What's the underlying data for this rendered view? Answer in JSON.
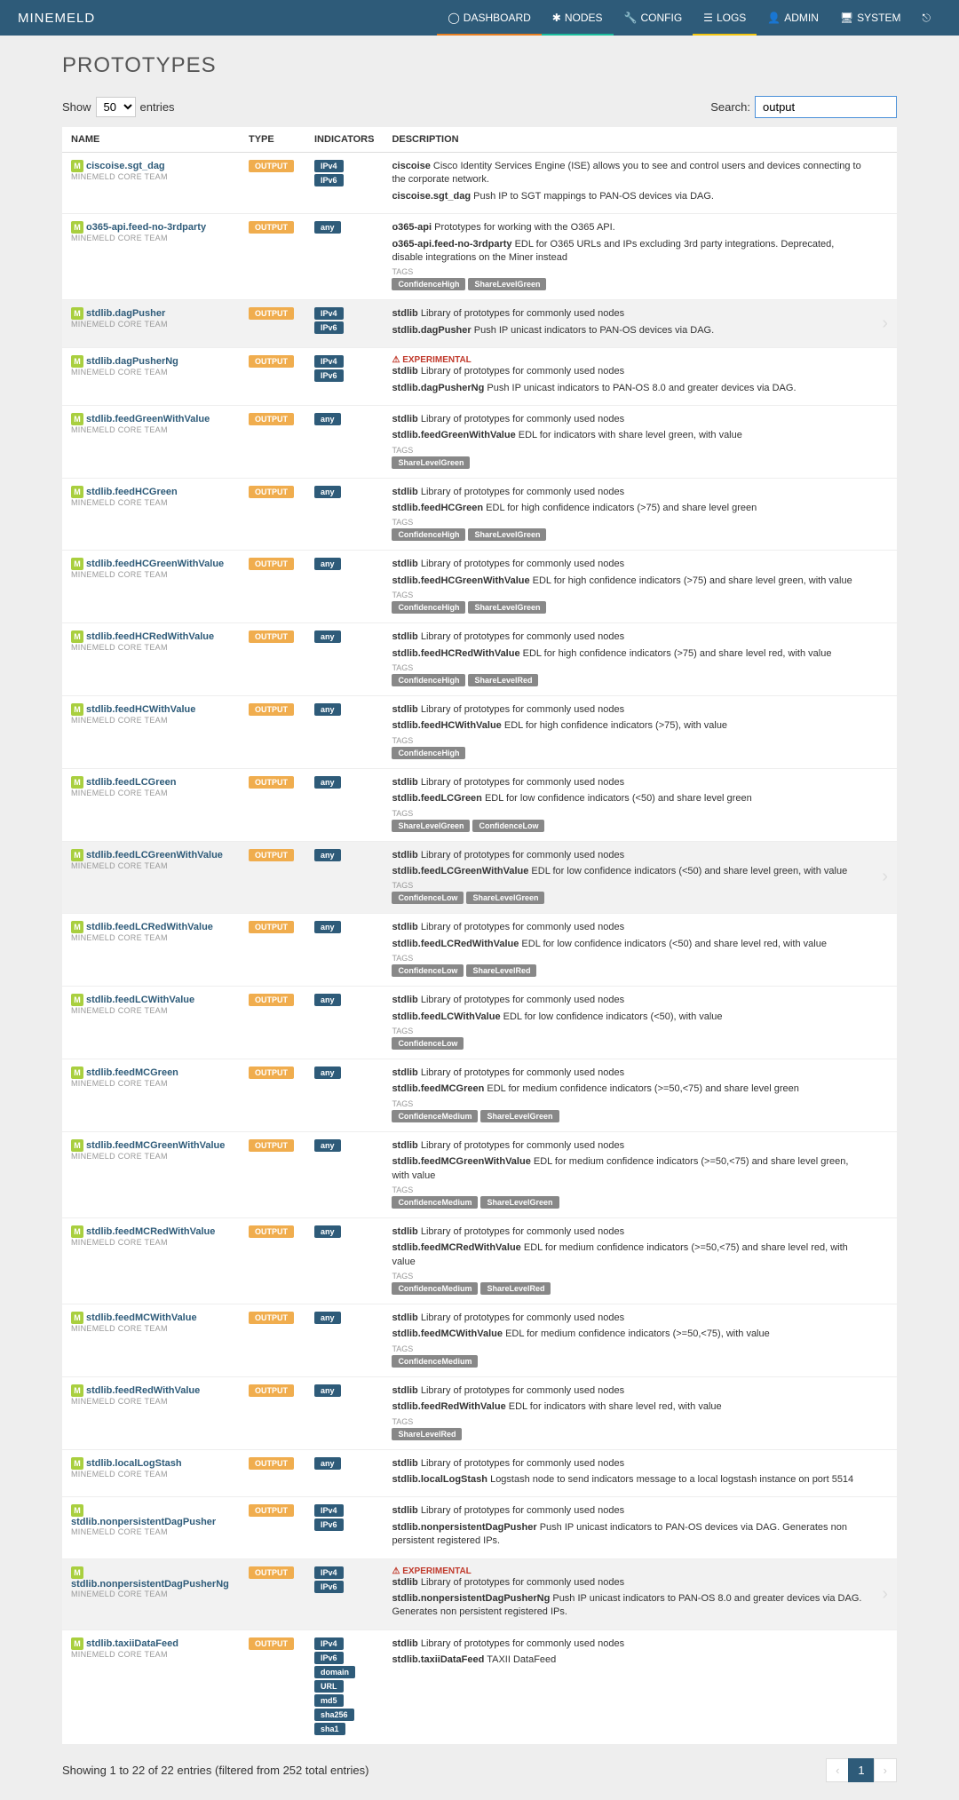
{
  "brand": "MINEMELD",
  "nav": {
    "dashboard": "DASHBOARD",
    "nodes": "NODES",
    "config": "CONFIG",
    "logs": "LOGS",
    "admin": "ADMIN",
    "system": "SYSTEM"
  },
  "page_title": "PROTOTYPES",
  "show_label_pre": "Show",
  "show_label_post": "entries",
  "show_value": "50",
  "search_label": "Search:",
  "search_value": "output",
  "headers": {
    "name": "NAME",
    "type": "TYPE",
    "indicators": "INDICATORS",
    "description": "DESCRIPTION"
  },
  "team_label": "MINEMELD CORE TEAM",
  "type_label": "OUTPUT",
  "tags_label": "TAGS",
  "experimental_label": "EXPERIMENTAL",
  "rows": [
    {
      "name": "ciscoise.sgt_dag",
      "indicators": [
        "IPv4",
        "IPv6"
      ],
      "desc": [
        {
          "b": "ciscoise",
          "t": " Cisco Identity Services Engine (ISE) allows you to see and control users and devices connecting to the corporate network."
        },
        {
          "b": "ciscoise.sgt_dag",
          "t": " Push IP to SGT mappings to PAN-OS devices via DAG."
        }
      ],
      "tags": null
    },
    {
      "name": "o365-api.feed-no-3rdparty",
      "indicators": [
        "any"
      ],
      "desc": [
        {
          "b": "o365-api",
          "t": " Prototypes for working with the O365 API."
        },
        {
          "b": "o365-api.feed-no-3rdparty",
          "t": " EDL for O365 URLs and IPs excluding 3rd party integrations. Deprecated, disable integrations on the Miner instead"
        }
      ],
      "tags": [
        "ConfidenceHigh",
        "ShareLevelGreen"
      ]
    },
    {
      "name": "stdlib.dagPusher",
      "indicators": [
        "IPv4",
        "IPv6"
      ],
      "highlight": true,
      "arrow": true,
      "desc": [
        {
          "b": "stdlib",
          "t": " Library of prototypes for commonly used nodes"
        },
        {
          "b": "stdlib.dagPusher",
          "t": " Push IP unicast indicators to PAN-OS devices via DAG."
        }
      ],
      "tags": null
    },
    {
      "name": "stdlib.dagPusherNg",
      "indicators": [
        "IPv4",
        "IPv6"
      ],
      "experimental": true,
      "desc": [
        {
          "b": "stdlib",
          "t": " Library of prototypes for commonly used nodes"
        },
        {
          "b": "stdlib.dagPusherNg",
          "t": " Push IP unicast indicators to PAN-OS 8.0 and greater devices via DAG."
        }
      ],
      "tags": null
    },
    {
      "name": "stdlib.feedGreenWithValue",
      "indicators": [
        "any"
      ],
      "desc": [
        {
          "b": "stdlib",
          "t": " Library of prototypes for commonly used nodes"
        },
        {
          "b": "stdlib.feedGreenWithValue",
          "t": " EDL for indicators with share level green, with value"
        }
      ],
      "tags": [
        "ShareLevelGreen"
      ]
    },
    {
      "name": "stdlib.feedHCGreen",
      "indicators": [
        "any"
      ],
      "desc": [
        {
          "b": "stdlib",
          "t": " Library of prototypes for commonly used nodes"
        },
        {
          "b": "stdlib.feedHCGreen",
          "t": " EDL for high confidence indicators (>75) and share level green"
        }
      ],
      "tags": [
        "ConfidenceHigh",
        "ShareLevelGreen"
      ]
    },
    {
      "name": "stdlib.feedHCGreenWithValue",
      "indicators": [
        "any"
      ],
      "desc": [
        {
          "b": "stdlib",
          "t": " Library of prototypes for commonly used nodes"
        },
        {
          "b": "stdlib.feedHCGreenWithValue",
          "t": " EDL for high confidence indicators (>75) and share level green, with value"
        }
      ],
      "tags": [
        "ConfidenceHigh",
        "ShareLevelGreen"
      ]
    },
    {
      "name": "stdlib.feedHCRedWithValue",
      "indicators": [
        "any"
      ],
      "desc": [
        {
          "b": "stdlib",
          "t": " Library of prototypes for commonly used nodes"
        },
        {
          "b": "stdlib.feedHCRedWithValue",
          "t": " EDL for high confidence indicators (>75) and share level red, with value"
        }
      ],
      "tags": [
        "ConfidenceHigh",
        "ShareLevelRed"
      ]
    },
    {
      "name": "stdlib.feedHCWithValue",
      "indicators": [
        "any"
      ],
      "desc": [
        {
          "b": "stdlib",
          "t": " Library of prototypes for commonly used nodes"
        },
        {
          "b": "stdlib.feedHCWithValue",
          "t": " EDL for high confidence indicators (>75), with value"
        }
      ],
      "tags": [
        "ConfidenceHigh"
      ]
    },
    {
      "name": "stdlib.feedLCGreen",
      "indicators": [
        "any"
      ],
      "desc": [
        {
          "b": "stdlib",
          "t": " Library of prototypes for commonly used nodes"
        },
        {
          "b": "stdlib.feedLCGreen",
          "t": " EDL for low confidence indicators (<50) and share level green"
        }
      ],
      "tags": [
        "ShareLevelGreen",
        "ConfidenceLow"
      ]
    },
    {
      "name": "stdlib.feedLCGreenWithValue",
      "indicators": [
        "any"
      ],
      "highlight": true,
      "arrow": true,
      "desc": [
        {
          "b": "stdlib",
          "t": " Library of prototypes for commonly used nodes"
        },
        {
          "b": "stdlib.feedLCGreenWithValue",
          "t": " EDL for low confidence indicators (<50) and share level green, with value"
        }
      ],
      "tags": [
        "ConfidenceLow",
        "ShareLevelGreen"
      ]
    },
    {
      "name": "stdlib.feedLCRedWithValue",
      "indicators": [
        "any"
      ],
      "desc": [
        {
          "b": "stdlib",
          "t": " Library of prototypes for commonly used nodes"
        },
        {
          "b": "stdlib.feedLCRedWithValue",
          "t": " EDL for low confidence indicators (<50) and share level red, with value"
        }
      ],
      "tags": [
        "ConfidenceLow",
        "ShareLevelRed"
      ]
    },
    {
      "name": "stdlib.feedLCWithValue",
      "indicators": [
        "any"
      ],
      "desc": [
        {
          "b": "stdlib",
          "t": " Library of prototypes for commonly used nodes"
        },
        {
          "b": "stdlib.feedLCWithValue",
          "t": " EDL for low confidence indicators (<50), with value"
        }
      ],
      "tags": [
        "ConfidenceLow"
      ]
    },
    {
      "name": "stdlib.feedMCGreen",
      "indicators": [
        "any"
      ],
      "desc": [
        {
          "b": "stdlib",
          "t": " Library of prototypes for commonly used nodes"
        },
        {
          "b": "stdlib.feedMCGreen",
          "t": " EDL for medium confidence indicators (>=50,<75) and share level green"
        }
      ],
      "tags": [
        "ConfidenceMedium",
        "ShareLevelGreen"
      ]
    },
    {
      "name": "stdlib.feedMCGreenWithValue",
      "indicators": [
        "any"
      ],
      "desc": [
        {
          "b": "stdlib",
          "t": " Library of prototypes for commonly used nodes"
        },
        {
          "b": "stdlib.feedMCGreenWithValue",
          "t": " EDL for medium confidence indicators (>=50,<75) and share level green, with value"
        }
      ],
      "tags": [
        "ConfidenceMedium",
        "ShareLevelGreen"
      ]
    },
    {
      "name": "stdlib.feedMCRedWithValue",
      "indicators": [
        "any"
      ],
      "desc": [
        {
          "b": "stdlib",
          "t": " Library of prototypes for commonly used nodes"
        },
        {
          "b": "stdlib.feedMCRedWithValue",
          "t": " EDL for medium confidence indicators (>=50,<75) and share level red, with value"
        }
      ],
      "tags": [
        "ConfidenceMedium",
        "ShareLevelRed"
      ]
    },
    {
      "name": "stdlib.feedMCWithValue",
      "indicators": [
        "any"
      ],
      "desc": [
        {
          "b": "stdlib",
          "t": " Library of prototypes for commonly used nodes"
        },
        {
          "b": "stdlib.feedMCWithValue",
          "t": " EDL for medium confidence indicators (>=50,<75), with value"
        }
      ],
      "tags": [
        "ConfidenceMedium"
      ]
    },
    {
      "name": "stdlib.feedRedWithValue",
      "indicators": [
        "any"
      ],
      "desc": [
        {
          "b": "stdlib",
          "t": " Library of prototypes for commonly used nodes"
        },
        {
          "b": "stdlib.feedRedWithValue",
          "t": " EDL for indicators with share level red, with value"
        }
      ],
      "tags": [
        "ShareLevelRed"
      ]
    },
    {
      "name": "stdlib.localLogStash",
      "indicators": [
        "any"
      ],
      "desc": [
        {
          "b": "stdlib",
          "t": " Library of prototypes for commonly used nodes"
        },
        {
          "b": "stdlib.localLogStash",
          "t": " Logstash node to send indicators message to a local logstash instance on port 5514"
        }
      ],
      "tags": null
    },
    {
      "name": "stdlib.nonpersistentDagPusher",
      "indicators": [
        "IPv4",
        "IPv6"
      ],
      "desc": [
        {
          "b": "stdlib",
          "t": " Library of prototypes for commonly used nodes"
        },
        {
          "b": "stdlib.nonpersistentDagPusher",
          "t": " Push IP unicast indicators to PAN-OS devices via DAG. Generates non persistent registered IPs."
        }
      ],
      "tags": null
    },
    {
      "name": "stdlib.nonpersistentDagPusherNg",
      "indicators": [
        "IPv4",
        "IPv6"
      ],
      "highlight": true,
      "arrow": true,
      "experimental": true,
      "desc": [
        {
          "b": "stdlib",
          "t": " Library of prototypes for commonly used nodes"
        },
        {
          "b": "stdlib.nonpersistentDagPusherNg",
          "t": " Push IP unicast indicators to PAN-OS 8.0 and greater devices via DAG. Generates non persistent registered IPs."
        }
      ],
      "tags": null
    },
    {
      "name": "stdlib.taxiiDataFeed",
      "indicators": [
        "IPv4",
        "IPv6",
        "domain",
        "URL",
        "md5",
        "sha256",
        "sha1"
      ],
      "desc": [
        {
          "b": "stdlib",
          "t": " Library of prototypes for commonly used nodes"
        },
        {
          "b": "stdlib.taxiiDataFeed",
          "t": " TAXII DataFeed"
        }
      ],
      "tags": null
    }
  ],
  "footer_info": "Showing 1 to 22 of 22 entries (filtered from 252 total entries)",
  "page_prev": "‹",
  "page_current": "1",
  "page_next": "›"
}
